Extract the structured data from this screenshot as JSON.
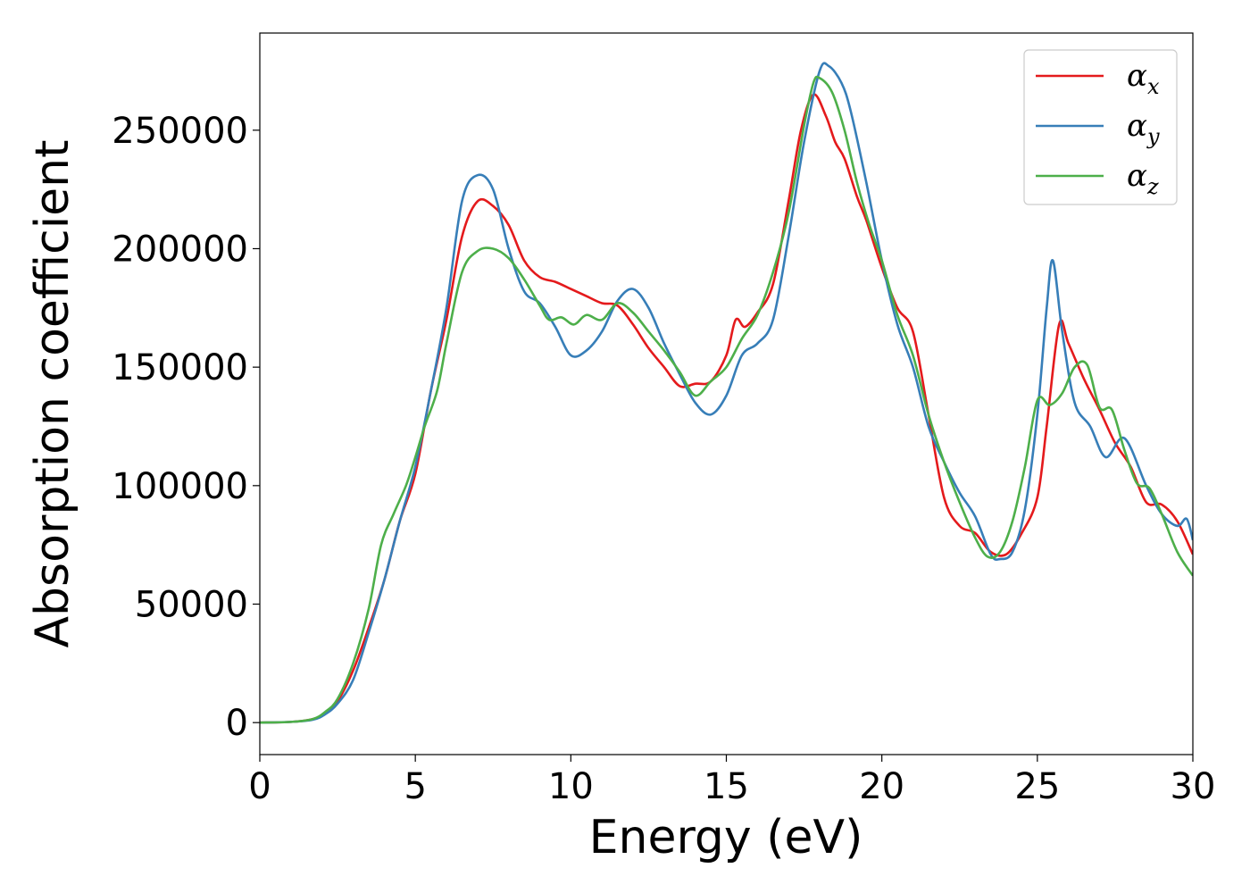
{
  "chart_data": {
    "type": "line",
    "title": "",
    "xlabel": "Energy (eV)",
    "ylabel": "Absorption coefficient",
    "xlim": [
      0,
      30
    ],
    "ylim": [
      -13500,
      291000
    ],
    "x_ticks": [
      0,
      5,
      10,
      15,
      20,
      25,
      30
    ],
    "y_ticks": [
      0,
      50000,
      100000,
      150000,
      200000,
      250000
    ],
    "grid": false,
    "legend_position": "top-right",
    "series": [
      {
        "name": "α_x",
        "label_main": "α",
        "label_sub": "x",
        "color": "#e41a1c",
        "points": [
          [
            0,
            0
          ],
          [
            1,
            300
          ],
          [
            1.7,
            1500
          ],
          [
            2.1,
            4000
          ],
          [
            2.5,
            9000
          ],
          [
            3,
            22000
          ],
          [
            3.5,
            40000
          ],
          [
            4,
            60000
          ],
          [
            4.5,
            85000
          ],
          [
            5,
            105000
          ],
          [
            5.5,
            140000
          ],
          [
            6,
            170000
          ],
          [
            6.5,
            205000
          ],
          [
            7,
            220000
          ],
          [
            7.5,
            218000
          ],
          [
            8,
            210000
          ],
          [
            8.5,
            195000
          ],
          [
            9,
            188000
          ],
          [
            9.5,
            186000
          ],
          [
            10,
            183000
          ],
          [
            10.5,
            180000
          ],
          [
            11,
            177000
          ],
          [
            11.5,
            176000
          ],
          [
            12,
            168000
          ],
          [
            12.5,
            158000
          ],
          [
            13,
            150000
          ],
          [
            13.5,
            142000
          ],
          [
            14,
            143000
          ],
          [
            14.5,
            144000
          ],
          [
            15,
            155000
          ],
          [
            15.3,
            170000
          ],
          [
            15.6,
            167000
          ],
          [
            16,
            173000
          ],
          [
            16.5,
            185000
          ],
          [
            17,
            220000
          ],
          [
            17.4,
            250000
          ],
          [
            17.8,
            265000
          ],
          [
            18.2,
            256000
          ],
          [
            18.5,
            245000
          ],
          [
            18.8,
            238000
          ],
          [
            19.2,
            222000
          ],
          [
            19.5,
            212000
          ],
          [
            20,
            192000
          ],
          [
            20.5,
            175000
          ],
          [
            21,
            165000
          ],
          [
            21.5,
            130000
          ],
          [
            22,
            95000
          ],
          [
            22.5,
            83000
          ],
          [
            23,
            80000
          ],
          [
            23.5,
            72000
          ],
          [
            24,
            71000
          ],
          [
            24.5,
            80000
          ],
          [
            25,
            95000
          ],
          [
            25.3,
            125000
          ],
          [
            25.7,
            168000
          ],
          [
            26,
            160000
          ],
          [
            26.5,
            145000
          ],
          [
            27,
            132000
          ],
          [
            27.5,
            118000
          ],
          [
            28,
            108000
          ],
          [
            28.5,
            93000
          ],
          [
            29,
            92000
          ],
          [
            29.5,
            85000
          ],
          [
            30,
            71000
          ]
        ]
      },
      {
        "name": "α_y",
        "label_main": "α",
        "label_sub": "y",
        "color": "#377eb8",
        "points": [
          [
            0,
            0
          ],
          [
            1,
            300
          ],
          [
            1.7,
            1200
          ],
          [
            2.1,
            3500
          ],
          [
            2.5,
            8000
          ],
          [
            3,
            18000
          ],
          [
            3.5,
            38000
          ],
          [
            4,
            60000
          ],
          [
            4.5,
            85000
          ],
          [
            5,
            108000
          ],
          [
            5.5,
            140000
          ],
          [
            6,
            175000
          ],
          [
            6.5,
            220000
          ],
          [
            7,
            231000
          ],
          [
            7.5,
            225000
          ],
          [
            8,
            200000
          ],
          [
            8.5,
            182000
          ],
          [
            9,
            177000
          ],
          [
            9.5,
            167000
          ],
          [
            10,
            155000
          ],
          [
            10.5,
            157000
          ],
          [
            11,
            165000
          ],
          [
            11.5,
            178000
          ],
          [
            12,
            183000
          ],
          [
            12.5,
            175000
          ],
          [
            13,
            160000
          ],
          [
            13.5,
            147000
          ],
          [
            14,
            135000
          ],
          [
            14.5,
            130000
          ],
          [
            15,
            138000
          ],
          [
            15.5,
            155000
          ],
          [
            16,
            160000
          ],
          [
            16.5,
            170000
          ],
          [
            17,
            205000
          ],
          [
            17.5,
            245000
          ],
          [
            18,
            275000
          ],
          [
            18.3,
            277000
          ],
          [
            18.7,
            270000
          ],
          [
            19,
            258000
          ],
          [
            19.5,
            228000
          ],
          [
            20,
            195000
          ],
          [
            20.5,
            168000
          ],
          [
            21,
            150000
          ],
          [
            21.5,
            125000
          ],
          [
            22,
            110000
          ],
          [
            22.5,
            97000
          ],
          [
            23,
            87000
          ],
          [
            23.5,
            71000
          ],
          [
            23.8,
            69000
          ],
          [
            24.2,
            72000
          ],
          [
            24.6,
            90000
          ],
          [
            25,
            130000
          ],
          [
            25.3,
            175000
          ],
          [
            25.5,
            195000
          ],
          [
            25.8,
            165000
          ],
          [
            26.2,
            135000
          ],
          [
            26.7,
            125000
          ],
          [
            27.2,
            112000
          ],
          [
            27.8,
            120000
          ],
          [
            28.5,
            100000
          ],
          [
            29,
            88000
          ],
          [
            29.5,
            83000
          ],
          [
            29.8,
            86000
          ],
          [
            30,
            77000
          ]
        ]
      },
      {
        "name": "α_z",
        "label_main": "α",
        "label_sub": "z",
        "color": "#4daf4a",
        "points": [
          [
            0,
            0
          ],
          [
            1,
            300
          ],
          [
            1.7,
            1500
          ],
          [
            2.1,
            4500
          ],
          [
            2.5,
            10000
          ],
          [
            3,
            25000
          ],
          [
            3.5,
            48000
          ],
          [
            3.9,
            75000
          ],
          [
            4.3,
            88000
          ],
          [
            4.7,
            100000
          ],
          [
            5,
            112000
          ],
          [
            5.3,
            125000
          ],
          [
            5.7,
            140000
          ],
          [
            6,
            160000
          ],
          [
            6.5,
            190000
          ],
          [
            7,
            199000
          ],
          [
            7.5,
            200000
          ],
          [
            8,
            196000
          ],
          [
            8.5,
            187000
          ],
          [
            9,
            176000
          ],
          [
            9.3,
            170000
          ],
          [
            9.7,
            171000
          ],
          [
            10.1,
            168000
          ],
          [
            10.5,
            172000
          ],
          [
            11,
            170000
          ],
          [
            11.5,
            177000
          ],
          [
            12,
            173000
          ],
          [
            12.5,
            165000
          ],
          [
            13,
            157000
          ],
          [
            13.5,
            148000
          ],
          [
            14,
            138000
          ],
          [
            14.5,
            144000
          ],
          [
            15,
            150000
          ],
          [
            15.5,
            162000
          ],
          [
            16,
            172000
          ],
          [
            16.5,
            190000
          ],
          [
            17,
            215000
          ],
          [
            17.5,
            252000
          ],
          [
            17.8,
            270000
          ],
          [
            18,
            272000
          ],
          [
            18.4,
            266000
          ],
          [
            18.8,
            250000
          ],
          [
            19.2,
            228000
          ],
          [
            19.6,
            210000
          ],
          [
            20,
            195000
          ],
          [
            20.5,
            172000
          ],
          [
            21,
            155000
          ],
          [
            21.5,
            130000
          ],
          [
            22,
            110000
          ],
          [
            22.5,
            93000
          ],
          [
            23,
            78000
          ],
          [
            23.4,
            70000
          ],
          [
            23.8,
            72000
          ],
          [
            24.2,
            85000
          ],
          [
            24.6,
            108000
          ],
          [
            25,
            136000
          ],
          [
            25.4,
            134000
          ],
          [
            25.8,
            139000
          ],
          [
            26.2,
            150000
          ],
          [
            26.6,
            151000
          ],
          [
            27,
            133000
          ],
          [
            27.4,
            132000
          ],
          [
            27.8,
            115000
          ],
          [
            28.2,
            101000
          ],
          [
            28.6,
            99000
          ],
          [
            29,
            88000
          ],
          [
            29.5,
            72000
          ],
          [
            30,
            62000
          ]
        ]
      }
    ]
  }
}
